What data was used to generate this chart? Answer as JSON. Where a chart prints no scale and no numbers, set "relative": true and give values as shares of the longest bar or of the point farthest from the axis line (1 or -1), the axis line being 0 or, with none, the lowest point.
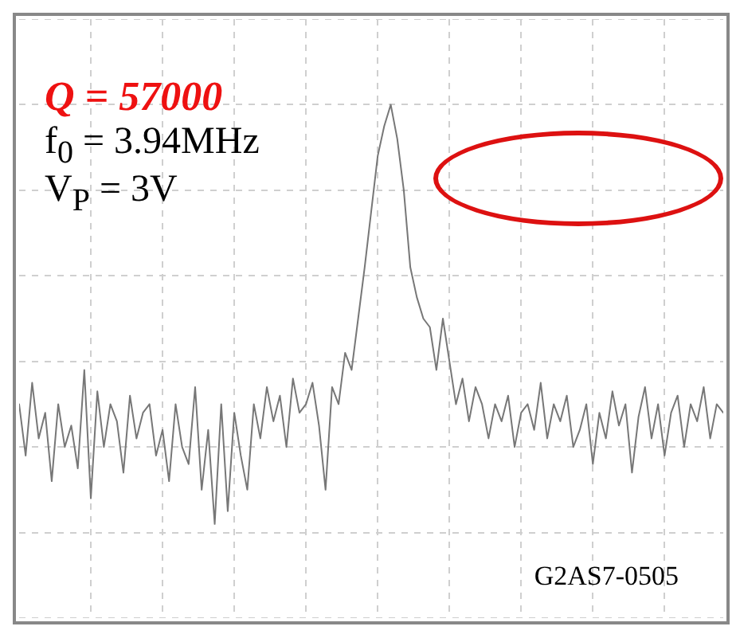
{
  "chart_data": {
    "type": "line",
    "relative": true,
    "grid": true,
    "marker": "none",
    "legend": false,
    "annotations": [
      "Q = 57000",
      "f$_{0}$ = 3.94MHz",
      "V$_{P}$ = 3V",
      "G2AS7-0505"
    ],
    "categories": [
      null,
      null,
      null,
      null,
      null,
      null,
      null,
      null,
      null,
      null,
      null,
      null,
      null,
      null,
      null,
      null,
      null,
      null,
      null,
      null,
      null,
      null,
      null,
      null,
      null,
      null,
      null,
      null,
      null,
      null,
      null,
      null,
      null,
      null,
      null,
      null,
      null,
      null,
      null,
      null,
      null,
      null,
      null,
      null,
      null,
      null,
      null,
      null,
      null,
      null,
      null,
      null,
      null,
      null,
      null,
      null,
      null,
      null,
      null,
      null,
      null,
      null,
      null,
      null,
      null,
      null,
      null,
      null,
      null,
      null,
      null,
      null,
      null,
      null,
      null,
      null,
      null,
      null,
      null,
      null,
      null,
      null,
      null,
      null,
      null,
      null,
      null,
      null,
      null,
      null,
      null,
      null,
      null,
      null,
      null,
      null,
      null,
      null,
      null,
      null,
      null,
      null,
      null,
      null,
      null,
      null,
      null,
      null,
      null
    ],
    "series": [
      {
        "color": "#777777",
        "values": [
          0.3,
          0.18,
          0.35,
          0.22,
          0.28,
          0.12,
          0.3,
          0.2,
          0.25,
          0.15,
          0.38,
          0.08,
          0.33,
          0.2,
          0.3,
          0.26,
          0.14,
          0.32,
          0.22,
          0.28,
          0.3,
          0.18,
          0.24,
          0.12,
          0.3,
          0.2,
          0.16,
          0.34,
          0.1,
          0.24,
          0.02,
          0.3,
          0.05,
          0.28,
          0.18,
          0.1,
          0.3,
          0.22,
          0.34,
          0.26,
          0.32,
          0.2,
          0.36,
          0.28,
          0.3,
          0.35,
          0.25,
          0.1,
          0.34,
          0.3,
          0.42,
          0.38,
          0.5,
          0.62,
          0.75,
          0.88,
          0.95,
          1.0,
          0.92,
          0.8,
          0.62,
          0.55,
          0.5,
          0.48,
          0.38,
          0.5,
          0.4,
          0.3,
          0.36,
          0.26,
          0.34,
          0.3,
          0.22,
          0.3,
          0.26,
          0.32,
          0.2,
          0.28,
          0.3,
          0.24,
          0.35,
          0.22,
          0.3,
          0.26,
          0.32,
          0.2,
          0.24,
          0.3,
          0.16,
          0.28,
          0.22,
          0.33,
          0.25,
          0.3,
          0.14,
          0.27,
          0.34,
          0.22,
          0.3,
          0.18,
          0.28,
          0.32,
          0.2,
          0.3,
          0.26,
          0.34,
          0.22,
          0.3,
          0.28
        ]
      }
    ]
  }
}
